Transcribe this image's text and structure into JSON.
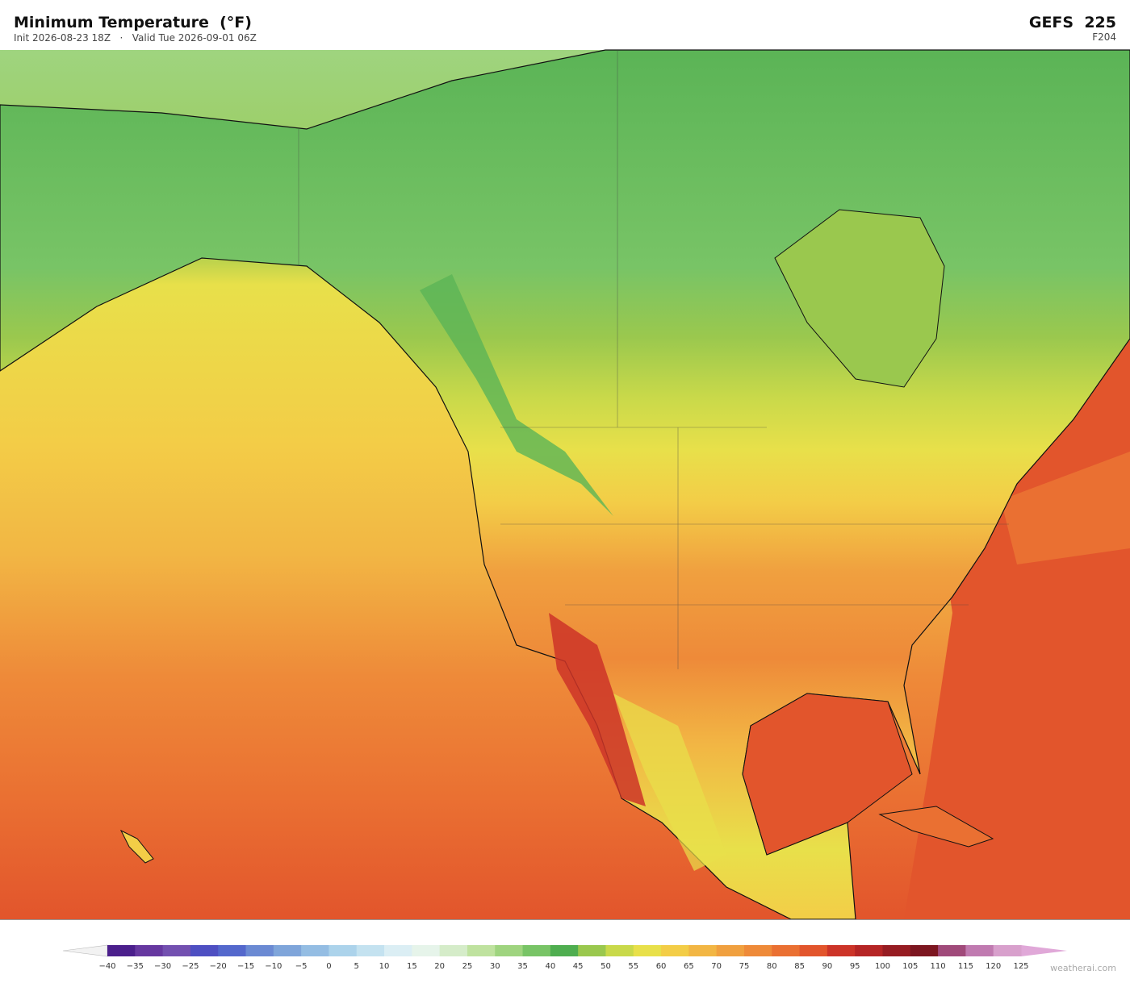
{
  "header": {
    "title": "Minimum Temperature  (°F)",
    "subtitle": "Init 2026-08-23 18Z   ·   Valid Tue 2026-09-01 06Z",
    "model": "GEFS  225",
    "forecast_hour": "F204"
  },
  "colorbar": {
    "labels": [
      "−40",
      "−35",
      "−30",
      "−25",
      "−20",
      "−15",
      "−10",
      "−5",
      "0",
      "5",
      "10",
      "15",
      "20",
      "25",
      "30",
      "35",
      "40",
      "45",
      "50",
      "55",
      "60",
      "65",
      "70",
      "75",
      "80",
      "85",
      "90",
      "95",
      "100",
      "105",
      "110",
      "115",
      "120",
      "125"
    ],
    "colors": [
      "#4b1f8c",
      "#6638a0",
      "#7350b0",
      "#4e4fc2",
      "#5468cc",
      "#6b8ad3",
      "#7fa5da",
      "#94bde3",
      "#acd3eb",
      "#c4e2f0",
      "#dbeef4",
      "#e6f4ea",
      "#d5ecc9",
      "#bfe29f",
      "#9fd47f",
      "#78c466",
      "#4fae50",
      "#9ac84e",
      "#c9d94a",
      "#e8e04a",
      "#f3cd47",
      "#f2b644",
      "#f0a03f",
      "#ee8a39",
      "#ea7032",
      "#e2552c",
      "#cc3428",
      "#b52525",
      "#961c22",
      "#7c1620",
      "#a04a7a",
      "#c07ab0",
      "#d8a0cc"
    ],
    "under_color": "#f2f2f2",
    "over_color": "#e0a8d8"
  },
  "watermark": "weatherai.com"
}
